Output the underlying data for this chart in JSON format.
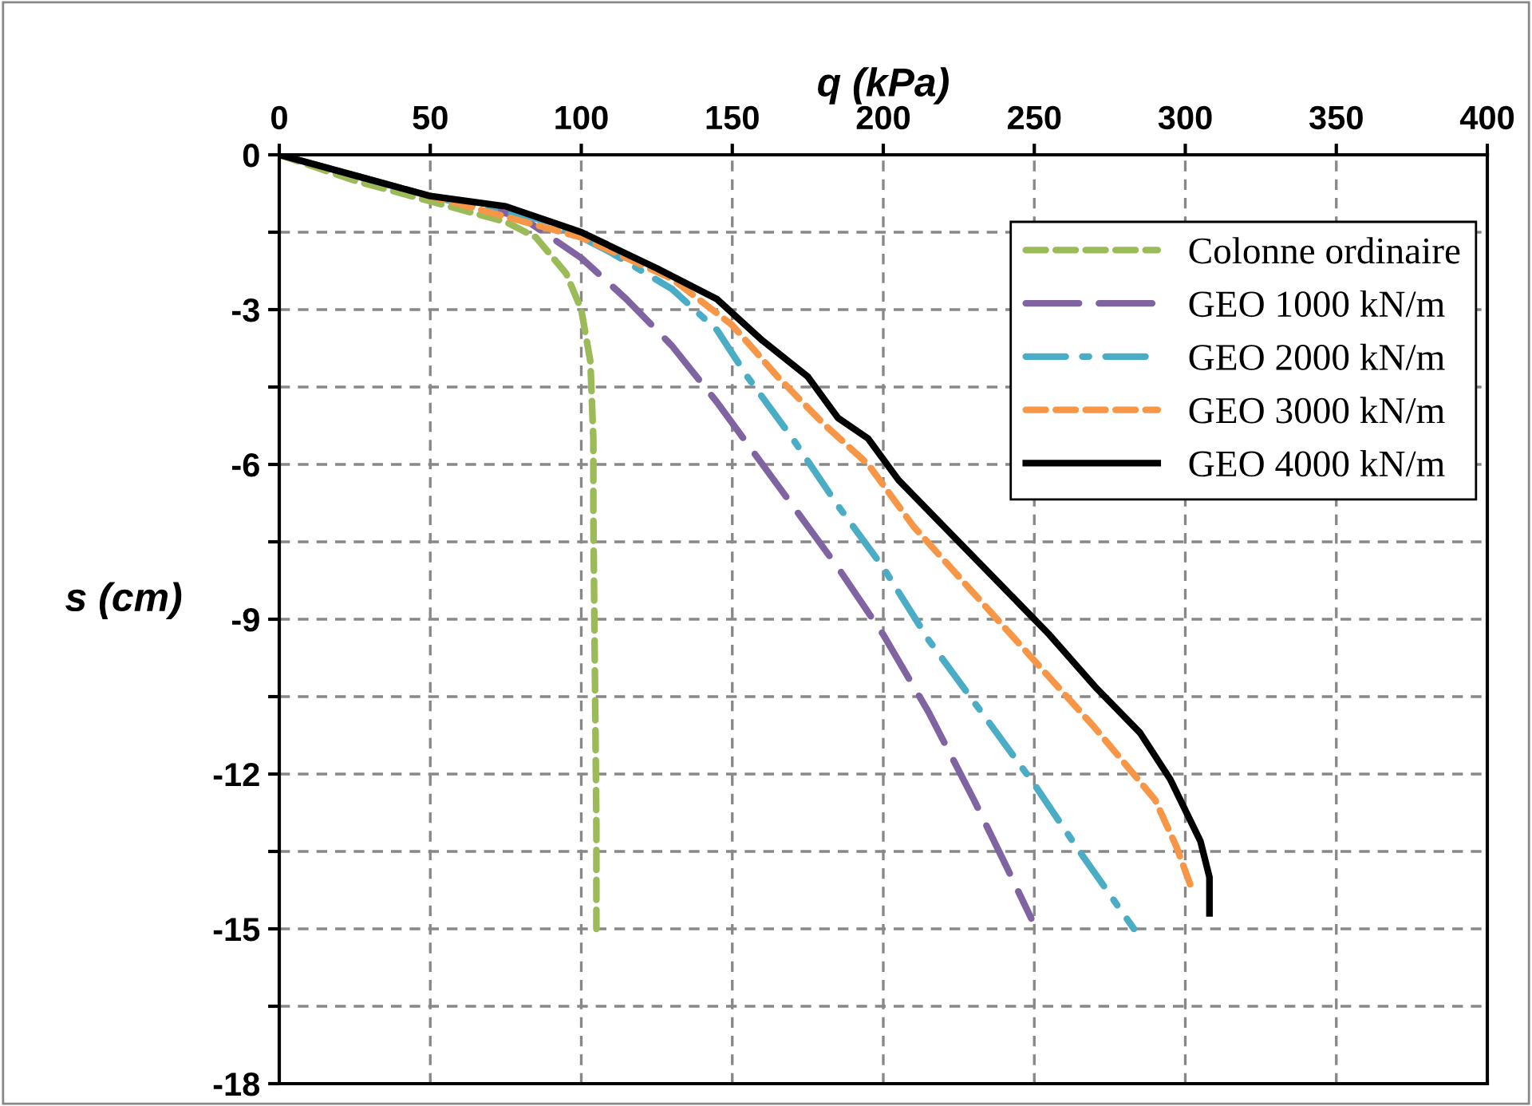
{
  "chart_data": {
    "type": "line",
    "xlabel": "q (kPa)",
    "ylabel": "s (cm)",
    "xlim": [
      0,
      400
    ],
    "xticks": [
      0,
      50,
      100,
      150,
      200,
      250,
      300,
      350,
      400
    ],
    "ylim": [
      -18,
      0
    ],
    "yticks": [
      -18,
      {
        "value": -16.5,
        "label": null
      },
      -15,
      {
        "value": -13.5,
        "label": null
      },
      -12,
      {
        "value": -10.5,
        "label": null
      },
      -9,
      {
        "value": -7.5,
        "label": null
      },
      -6,
      {
        "value": -4.5,
        "label": null
      },
      -3,
      {
        "value": -1.5,
        "label": null
      },
      0
    ],
    "grid": true,
    "legend": "top right",
    "series": [
      {
        "name": "Colonne ordinaire",
        "color": "#9bbb59",
        "line_style": "dashed",
        "x": [
          0,
          25,
          50,
          75,
          85,
          95,
          100,
          103,
          104,
          104,
          104.5,
          105,
          105
        ],
        "values": [
          0,
          -0.5,
          -0.9,
          -1.3,
          -1.6,
          -2.3,
          -3,
          -4,
          -5.5,
          -7,
          -10,
          -13,
          -15
        ]
      },
      {
        "name": "GEO 1000 kN/m",
        "color": "#8064a2",
        "line_style": "longdash",
        "x": [
          0,
          50,
          80,
          100,
          115,
          130,
          145,
          155,
          170,
          185,
          200,
          215,
          230,
          240,
          249
        ],
        "values": [
          0,
          -0.8,
          -1.2,
          -2,
          -2.8,
          -3.7,
          -4.8,
          -5.6,
          -6.8,
          -8.0,
          -9.3,
          -10.8,
          -12.5,
          -13.7,
          -14.8
        ]
      },
      {
        "name": "GEO 2000 kN/m",
        "color": "#4bacc6",
        "line_style": "dashdot",
        "x": [
          0,
          50,
          90,
          110,
          130,
          145,
          155,
          170,
          185,
          200,
          215,
          230,
          250,
          265,
          283
        ],
        "values": [
          0,
          -0.8,
          -1.3,
          -1.9,
          -2.6,
          -3.4,
          -4.3,
          -5.5,
          -6.8,
          -8,
          -9.4,
          -10.6,
          -12.2,
          -13.5,
          -15
        ]
      },
      {
        "name": "GEO 3000 kN/m",
        "color": "#f79646",
        "line_style": "dashed",
        "x": [
          0,
          50,
          100,
          130,
          150,
          165,
          180,
          195,
          210,
          230,
          250,
          270,
          290,
          297,
          302
        ],
        "values": [
          0,
          -0.8,
          -1.6,
          -2.4,
          -3.3,
          -4.3,
          -5.2,
          -6,
          -7.2,
          -8.5,
          -9.8,
          -11.1,
          -12.5,
          -13.4,
          -14.2
        ]
      },
      {
        "name": "GEO 4000 kN/m",
        "color": "#000000",
        "line_style": "solid",
        "x": [
          0,
          25,
          50,
          75,
          100,
          125,
          145,
          160,
          175,
          185,
          195,
          205,
          220,
          240,
          255,
          270,
          285,
          295,
          305,
          308,
          308
        ],
        "values": [
          0,
          -0.4,
          -0.8,
          -1.0,
          -1.5,
          -2.2,
          -2.8,
          -3.6,
          -4.3,
          -5.1,
          -5.5,
          -6.3,
          -7.2,
          -8.4,
          -9.3,
          -10.3,
          -11.2,
          -12.1,
          -13.3,
          -14.0,
          -14.7
        ]
      }
    ]
  }
}
